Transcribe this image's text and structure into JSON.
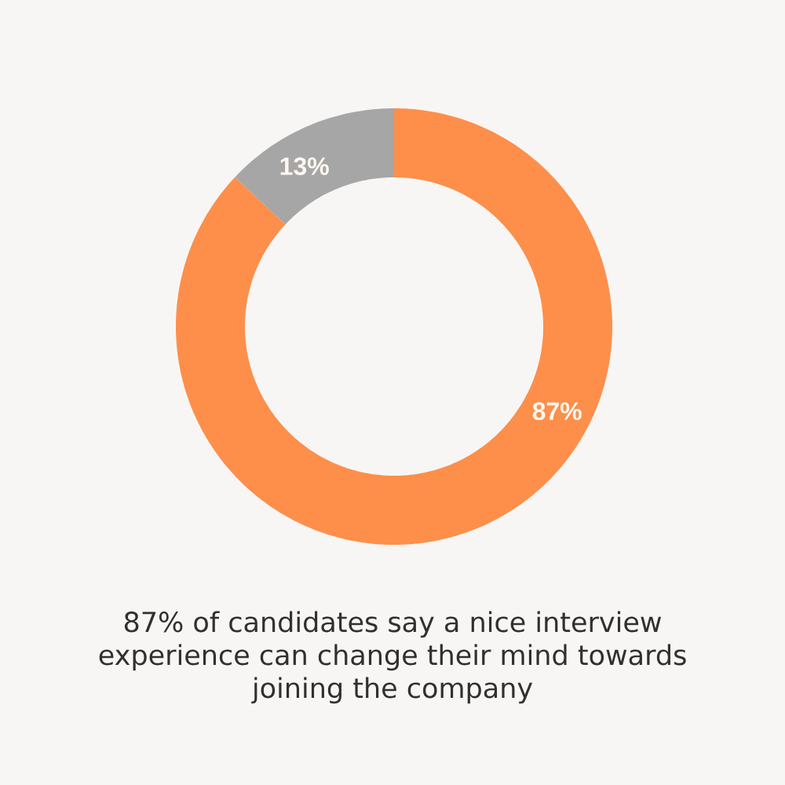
{
  "chart_data": {
    "type": "donut",
    "categories": [
      null,
      null
    ],
    "values": [
      87,
      13
    ],
    "colors": [
      "#fd8f4b",
      "#a6a6a6"
    ],
    "value_labels": [
      "87%",
      "13%"
    ],
    "annotations": [
      "87% of candidates say a nice interview experience can change their mind towards joining the company"
    ]
  }
}
